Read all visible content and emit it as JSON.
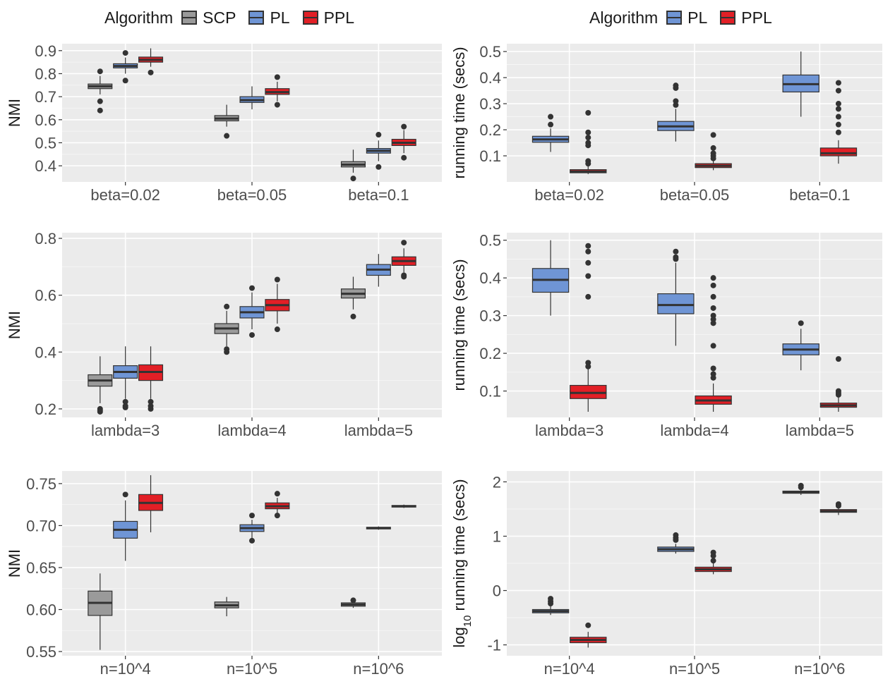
{
  "colors": {
    "SCP": "#9a9a9a",
    "PL": "#6f95d5",
    "PPL": "#e21f26",
    "panel_bg": "#ebebeb",
    "grid": "#ffffff",
    "median": "#333333"
  },
  "legend_left": {
    "title": "Algorithm",
    "items": [
      {
        "label": "SCP",
        "color": "#9a9a9a"
      },
      {
        "label": "PL",
        "color": "#6f95d5"
      },
      {
        "label": "PPL",
        "color": "#e21f26"
      }
    ]
  },
  "legend_right": {
    "title": "Algorithm",
    "items": [
      {
        "label": "PL",
        "color": "#6f95d5"
      },
      {
        "label": "PPL",
        "color": "#e21f26"
      }
    ]
  },
  "chart_data": [
    {
      "type": "box",
      "ylabel": "NMI",
      "ylim": [
        0.33,
        0.93
      ],
      "yticks": [
        0.4,
        0.5,
        0.6,
        0.7,
        0.8,
        0.9
      ],
      "ytick_labels": [
        "0.4",
        "0.5",
        "0.6",
        "0.7",
        "0.8",
        "0.9"
      ],
      "categories": [
        "beta=0.02",
        "beta=0.05",
        "beta=0.1"
      ],
      "series": [
        {
          "name": "SCP",
          "boxes": [
            {
              "wl": 0.71,
              "q1": 0.735,
              "med": 0.745,
              "q3": 0.755,
              "wh": 0.79,
              "out": [
                0.81,
                0.68,
                0.64
              ]
            },
            {
              "wl": 0.57,
              "q1": 0.595,
              "med": 0.605,
              "q3": 0.618,
              "wh": 0.665,
              "out": [
                0.53
              ]
            },
            {
              "wl": 0.37,
              "q1": 0.395,
              "med": 0.405,
              "q3": 0.418,
              "wh": 0.47,
              "out": [
                0.345
              ]
            }
          ]
        },
        {
          "name": "PL",
          "boxes": [
            {
              "wl": 0.8,
              "q1": 0.825,
              "med": 0.833,
              "q3": 0.843,
              "wh": 0.87,
              "out": [
                0.89,
                0.77
              ]
            },
            {
              "wl": 0.645,
              "q1": 0.675,
              "med": 0.685,
              "q3": 0.7,
              "wh": 0.745,
              "out": []
            },
            {
              "wl": 0.42,
              "q1": 0.455,
              "med": 0.465,
              "q3": 0.475,
              "wh": 0.51,
              "out": [
                0.535,
                0.395
              ]
            }
          ]
        },
        {
          "name": "PPL",
          "boxes": [
            {
              "wl": 0.83,
              "q1": 0.85,
              "med": 0.86,
              "q3": 0.872,
              "wh": 0.91,
              "out": [
                0.805
              ]
            },
            {
              "wl": 0.68,
              "q1": 0.71,
              "med": 0.72,
              "q3": 0.735,
              "wh": 0.765,
              "out": [
                0.785,
                0.665
              ]
            },
            {
              "wl": 0.455,
              "q1": 0.488,
              "med": 0.5,
              "q3": 0.515,
              "wh": 0.555,
              "out": [
                0.57,
                0.435
              ]
            }
          ]
        }
      ]
    },
    {
      "type": "box",
      "ylabel": "running time (secs)",
      "ylim": [
        0,
        0.53
      ],
      "yticks": [
        0.1,
        0.2,
        0.3,
        0.4,
        0.5
      ],
      "ytick_labels": [
        "0.1",
        "0.2",
        "0.3",
        "0.4",
        "0.5"
      ],
      "categories": [
        "beta=0.02",
        "beta=0.05",
        "beta=0.1"
      ],
      "series": [
        {
          "name": "PL",
          "boxes": [
            {
              "wl": 0.115,
              "q1": 0.152,
              "med": 0.163,
              "q3": 0.175,
              "wh": 0.205,
              "out": [
                0.25,
                0.22
              ]
            },
            {
              "wl": 0.155,
              "q1": 0.197,
              "med": 0.213,
              "q3": 0.232,
              "wh": 0.28,
              "out": [
                0.37,
                0.36,
                0.31,
                0.295
              ]
            },
            {
              "wl": 0.25,
              "q1": 0.345,
              "med": 0.375,
              "q3": 0.41,
              "wh": 0.5,
              "out": []
            }
          ]
        },
        {
          "name": "PPL",
          "boxes": [
            {
              "wl": 0.03,
              "q1": 0.035,
              "med": 0.04,
              "q3": 0.047,
              "wh": 0.06,
              "out": [
                0.265,
                0.19,
                0.17,
                0.15,
                0.14,
                0.08,
                0.07
              ]
            },
            {
              "wl": 0.045,
              "q1": 0.055,
              "med": 0.062,
              "q3": 0.07,
              "wh": 0.085,
              "out": [
                0.18,
                0.13,
                0.11,
                0.1,
                0.09
              ]
            },
            {
              "wl": 0.07,
              "q1": 0.1,
              "med": 0.11,
              "q3": 0.13,
              "wh": 0.16,
              "out": [
                0.38,
                0.35,
                0.3,
                0.28,
                0.25,
                0.22,
                0.19
              ]
            }
          ]
        }
      ]
    },
    {
      "type": "box",
      "ylabel": "NMI",
      "ylim": [
        0.17,
        0.82
      ],
      "yticks": [
        0.2,
        0.4,
        0.6,
        0.8
      ],
      "ytick_labels": [
        "0.2",
        "0.4",
        "0.6",
        "0.8"
      ],
      "categories": [
        "lambda=3",
        "lambda=4",
        "lambda=5"
      ],
      "series": [
        {
          "name": "SCP",
          "boxes": [
            {
              "wl": 0.22,
              "q1": 0.28,
              "med": 0.3,
              "q3": 0.32,
              "wh": 0.385,
              "out": [
                0.2,
                0.195,
                0.19
              ]
            },
            {
              "wl": 0.42,
              "q1": 0.465,
              "med": 0.483,
              "q3": 0.5,
              "wh": 0.545,
              "out": [
                0.56,
                0.41,
                0.4
              ]
            },
            {
              "wl": 0.55,
              "q1": 0.59,
              "med": 0.605,
              "q3": 0.622,
              "wh": 0.665,
              "out": [
                0.525
              ]
            }
          ]
        },
        {
          "name": "PL",
          "boxes": [
            {
              "wl": 0.235,
              "q1": 0.308,
              "med": 0.33,
              "q3": 0.352,
              "wh": 0.42,
              "out": [
                0.225,
                0.21,
                0.205
              ]
            },
            {
              "wl": 0.48,
              "q1": 0.52,
              "med": 0.54,
              "q3": 0.56,
              "wh": 0.61,
              "out": [
                0.625,
                0.46
              ]
            },
            {
              "wl": 0.63,
              "q1": 0.67,
              "med": 0.69,
              "q3": 0.708,
              "wh": 0.745,
              "out": []
            }
          ]
        },
        {
          "name": "PPL",
          "boxes": [
            {
              "wl": 0.235,
              "q1": 0.3,
              "med": 0.33,
              "q3": 0.355,
              "wh": 0.42,
              "out": [
                0.225,
                0.21,
                0.2
              ]
            },
            {
              "wl": 0.5,
              "q1": 0.545,
              "med": 0.565,
              "q3": 0.585,
              "wh": 0.64,
              "out": [
                0.655,
                0.48
              ]
            },
            {
              "wl": 0.68,
              "q1": 0.705,
              "med": 0.72,
              "q3": 0.735,
              "wh": 0.765,
              "out": [
                0.785,
                0.67,
                0.665
              ]
            }
          ]
        }
      ]
    },
    {
      "type": "box",
      "ylabel": "running time (secs)",
      "ylim": [
        0.03,
        0.52
      ],
      "yticks": [
        0.1,
        0.2,
        0.3,
        0.4,
        0.5
      ],
      "ytick_labels": [
        "0.1",
        "0.2",
        "0.3",
        "0.4",
        "0.5"
      ],
      "categories": [
        "lambda=3",
        "lambda=4",
        "lambda=5"
      ],
      "series": [
        {
          "name": "PL",
          "boxes": [
            {
              "wl": 0.3,
              "q1": 0.362,
              "med": 0.395,
              "q3": 0.425,
              "wh": 0.5,
              "out": []
            },
            {
              "wl": 0.22,
              "q1": 0.305,
              "med": 0.328,
              "q3": 0.358,
              "wh": 0.44,
              "out": [
                0.47,
                0.455,
                0.45
              ]
            },
            {
              "wl": 0.155,
              "q1": 0.196,
              "med": 0.21,
              "q3": 0.225,
              "wh": 0.265,
              "out": [
                0.28
              ]
            }
          ]
        },
        {
          "name": "PPL",
          "boxes": [
            {
              "wl": 0.045,
              "q1": 0.08,
              "med": 0.095,
              "q3": 0.115,
              "wh": 0.16,
              "out": [
                0.485,
                0.47,
                0.44,
                0.405,
                0.35,
                0.175,
                0.165
              ]
            },
            {
              "wl": 0.045,
              "q1": 0.065,
              "med": 0.075,
              "q3": 0.087,
              "wh": 0.12,
              "out": [
                0.4,
                0.38,
                0.35,
                0.32,
                0.3,
                0.29,
                0.28,
                0.22,
                0.16,
                0.145,
                0.135
              ]
            },
            {
              "wl": 0.045,
              "q1": 0.057,
              "med": 0.062,
              "q3": 0.068,
              "wh": 0.085,
              "out": [
                0.185,
                0.1,
                0.095,
                0.09
              ]
            }
          ]
        }
      ]
    },
    {
      "type": "box",
      "ylabel": "NMI",
      "ylim": [
        0.545,
        0.765
      ],
      "yticks": [
        0.55,
        0.6,
        0.65,
        0.7,
        0.75
      ],
      "ytick_labels": [
        "0.55",
        "0.60",
        "0.65",
        "0.70",
        "0.75"
      ],
      "categories": [
        "n=10^4",
        "n=10^5",
        "n=10^6"
      ],
      "series": [
        {
          "name": "SCP",
          "boxes": [
            {
              "wl": 0.552,
              "q1": 0.593,
              "med": 0.608,
              "q3": 0.622,
              "wh": 0.643,
              "out": []
            },
            {
              "wl": 0.592,
              "q1": 0.602,
              "med": 0.605,
              "q3": 0.609,
              "wh": 0.615,
              "out": []
            },
            {
              "wl": 0.602,
              "q1": 0.604,
              "med": 0.606,
              "q3": 0.608,
              "wh": 0.61,
              "out": [
                0.611
              ]
            }
          ]
        },
        {
          "name": "PL",
          "boxes": [
            {
              "wl": 0.658,
              "q1": 0.685,
              "med": 0.695,
              "q3": 0.705,
              "wh": 0.73,
              "out": [
                0.737
              ]
            },
            {
              "wl": 0.685,
              "q1": 0.693,
              "med": 0.697,
              "q3": 0.701,
              "wh": 0.707,
              "out": [
                0.712,
                0.682
              ]
            },
            {
              "wl": 0.695,
              "q1": 0.696,
              "med": 0.697,
              "q3": 0.698,
              "wh": 0.699,
              "out": []
            }
          ]
        },
        {
          "name": "PPL",
          "boxes": [
            {
              "wl": 0.692,
              "q1": 0.718,
              "med": 0.727,
              "q3": 0.737,
              "wh": 0.76,
              "out": []
            },
            {
              "wl": 0.715,
              "q1": 0.72,
              "med": 0.723,
              "q3": 0.727,
              "wh": 0.733,
              "out": [
                0.738,
                0.712
              ]
            },
            {
              "wl": 0.721,
              "q1": 0.722,
              "med": 0.723,
              "q3": 0.724,
              "wh": 0.725,
              "out": []
            }
          ]
        }
      ]
    },
    {
      "type": "box",
      "ylabel": "log10 running time (secs)",
      "ylim": [
        -1.2,
        2.2
      ],
      "yticks": [
        -1,
        0,
        1,
        2
      ],
      "ytick_labels": [
        "-1",
        "0",
        "1",
        "2"
      ],
      "categories": [
        "n=10^4",
        "n=10^5",
        "n=10^6"
      ],
      "series": [
        {
          "name": "PL",
          "boxes": [
            {
              "wl": -0.45,
              "q1": -0.41,
              "med": -0.38,
              "q3": -0.35,
              "wh": -0.28,
              "out": [
                -0.15,
                -0.2,
                -0.24
              ]
            },
            {
              "wl": 0.68,
              "q1": 0.72,
              "med": 0.76,
              "q3": 0.8,
              "wh": 0.86,
              "out": [
                1.02,
                0.97,
                0.93
              ]
            },
            {
              "wl": 1.76,
              "q1": 1.79,
              "med": 1.81,
              "q3": 1.83,
              "wh": 1.86,
              "out": [
                1.93,
                1.9
              ]
            }
          ]
        },
        {
          "name": "PPL",
          "boxes": [
            {
              "wl": -1.05,
              "q1": -0.96,
              "med": -0.91,
              "q3": -0.86,
              "wh": -0.76,
              "out": [
                -0.64
              ]
            },
            {
              "wl": 0.3,
              "q1": 0.35,
              "med": 0.39,
              "q3": 0.43,
              "wh": 0.5,
              "out": [
                0.7,
                0.64,
                0.55
              ]
            },
            {
              "wl": 1.39,
              "q1": 1.44,
              "med": 1.46,
              "q3": 1.49,
              "wh": 1.52,
              "out": [
                1.59,
                1.56
              ]
            }
          ]
        }
      ]
    }
  ]
}
